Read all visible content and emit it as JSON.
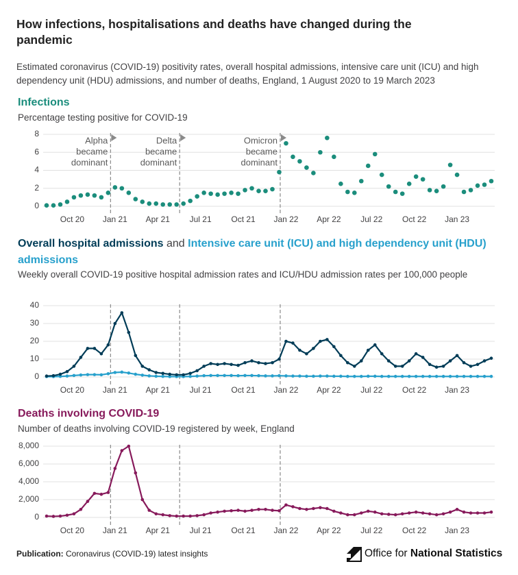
{
  "header": {
    "title": "How infections, hospitalisations and deaths have changed during the pandemic",
    "subtitle": "Estimated coronavirus (COVID-19) positivity rates, overall hospital admissions, intensive care unit (ICU) and high dependency unit (HDU) admissions, and number of deaths, England, 1 August 2020 to 19 March 2023"
  },
  "footer": {
    "label": "Publication:",
    "text": "Coronavirus (COVID-19) latest insights"
  },
  "logo": {
    "text_regular": "Office for",
    "text_bold": "National Statistics"
  },
  "chart_data": [
    {
      "type": "scatter",
      "title": "Infections",
      "subtitle": "Percentage testing positive for COVID-19",
      "color": "#1b8d7c",
      "x": [
        2020.6,
        2020.64,
        2020.68,
        2020.72,
        2020.76,
        2020.8,
        2020.84,
        2020.88,
        2020.92,
        2020.96,
        2021,
        2021.04,
        2021.08,
        2021.12,
        2021.16,
        2021.2,
        2021.24,
        2021.28,
        2021.32,
        2021.36,
        2021.4,
        2021.44,
        2021.48,
        2021.52,
        2021.56,
        2021.6,
        2021.64,
        2021.68,
        2021.72,
        2021.76,
        2021.8,
        2021.84,
        2021.88,
        2021.92,
        2021.96,
        2022,
        2022.04,
        2022.08,
        2022.12,
        2022.16,
        2022.2,
        2022.24,
        2022.28,
        2022.32,
        2022.36,
        2022.4,
        2022.44,
        2022.48,
        2022.52,
        2022.56,
        2022.6,
        2022.64,
        2022.68,
        2022.72,
        2022.76,
        2022.8,
        2022.84,
        2022.88,
        2022.92,
        2022.96,
        2023,
        2023.04,
        2023.08,
        2023.12,
        2023.16,
        2023.2
      ],
      "values": [
        0.1,
        0.1,
        0.2,
        0.5,
        1.0,
        1.2,
        1.3,
        1.2,
        1.0,
        1.5,
        2.1,
        2.0,
        1.5,
        0.8,
        0.5,
        0.3,
        0.3,
        0.2,
        0.2,
        0.2,
        0.3,
        0.6,
        1.1,
        1.5,
        1.4,
        1.3,
        1.4,
        1.5,
        1.4,
        1.8,
        2.0,
        1.7,
        1.7,
        1.9,
        3.8,
        7.0,
        5.5,
        5.0,
        4.3,
        3.7,
        6.0,
        7.6,
        5.5,
        2.5,
        1.6,
        1.5,
        2.8,
        4.5,
        5.8,
        3.5,
        2.2,
        1.6,
        1.4,
        2.5,
        3.3,
        3.0,
        1.8,
        1.7,
        2.2,
        4.6,
        3.5,
        1.6,
        1.8,
        2.3,
        2.4,
        2.8
      ],
      "xlim": [
        2020.58,
        2023.22
      ],
      "xticks": [
        {
          "value": 2020.75,
          "label": "Oct 20"
        },
        {
          "value": 2021,
          "label": "Jan 21"
        },
        {
          "value": 2021.25,
          "label": "Apr 21"
        },
        {
          "value": 2021.5,
          "label": "Jul 21"
        },
        {
          "value": 2021.75,
          "label": "Oct 21"
        },
        {
          "value": 2022,
          "label": "Jan 22"
        },
        {
          "value": 2022.25,
          "label": "Apr 22"
        },
        {
          "value": 2022.5,
          "label": "Jul 22"
        },
        {
          "value": 2022.75,
          "label": "Oct 22"
        },
        {
          "value": 2023,
          "label": "Jan 23"
        }
      ],
      "ylim": [
        0,
        8
      ],
      "yticks": [
        0,
        2,
        4,
        6,
        8
      ],
      "grid": true,
      "annotations": [
        {
          "x": 2020.974,
          "label": [
            "Alpha",
            "became",
            "dominant"
          ]
        },
        {
          "x": 2021.378,
          "label": [
            "Delta",
            "became",
            "dominant"
          ]
        },
        {
          "x": 2021.966,
          "label": [
            "Omicron",
            "became",
            "dominant"
          ]
        }
      ]
    },
    {
      "type": "line",
      "title_joiner": "and",
      "subtitle": "Weekly overall COVID-19 positive hospital admission rates and ICU/HDU admission rates per 100,000 people",
      "x": [
        2020.6,
        2020.64,
        2020.68,
        2020.72,
        2020.76,
        2020.8,
        2020.84,
        2020.88,
        2020.92,
        2020.96,
        2021,
        2021.04,
        2021.08,
        2021.12,
        2021.16,
        2021.2,
        2021.24,
        2021.28,
        2021.32,
        2021.36,
        2021.4,
        2021.44,
        2021.48,
        2021.52,
        2021.56,
        2021.6,
        2021.64,
        2021.68,
        2021.72,
        2021.76,
        2021.8,
        2021.84,
        2021.88,
        2021.92,
        2021.96,
        2022,
        2022.04,
        2022.08,
        2022.12,
        2022.16,
        2022.2,
        2022.24,
        2022.28,
        2022.32,
        2022.36,
        2022.4,
        2022.44,
        2022.48,
        2022.52,
        2022.56,
        2022.6,
        2022.64,
        2022.68,
        2022.72,
        2022.76,
        2022.8,
        2022.84,
        2022.88,
        2022.92,
        2022.96,
        2023,
        2023.04,
        2023.08,
        2023.12,
        2023.16,
        2023.2
      ],
      "series": [
        {
          "name": "Overall hospital admissions",
          "color": "#003c57",
          "values": [
            0.5,
            0.7,
            1.5,
            3,
            6,
            11,
            16,
            16,
            13,
            18,
            30,
            36,
            25,
            12,
            6,
            4,
            2.5,
            2,
            1.5,
            1.2,
            1.2,
            2,
            3.5,
            6,
            7.5,
            7,
            7.5,
            7,
            6.5,
            8,
            9,
            8,
            7.5,
            8,
            10,
            20,
            19,
            15,
            13,
            16,
            20,
            21,
            17,
            12,
            8,
            6,
            9,
            15,
            18,
            13,
            9,
            6,
            6,
            9,
            13,
            11,
            7,
            5.5,
            6,
            9,
            12,
            8,
            6,
            7,
            9,
            10.5
          ]
        },
        {
          "name": "Intensive care unit (ICU) and high dependency unit (HDU) admissions",
          "color": "#27a0cc",
          "values": [
            0.2,
            0.2,
            0.3,
            0.5,
            0.8,
            1.1,
            1.3,
            1.3,
            1.2,
            1.8,
            2.5,
            2.7,
            2.2,
            1.5,
            1.0,
            0.6,
            0.4,
            0.3,
            0.2,
            0.2,
            0.2,
            0.3,
            0.5,
            0.7,
            0.8,
            0.8,
            0.8,
            0.8,
            0.7,
            0.8,
            0.8,
            0.7,
            0.6,
            0.6,
            0.7,
            0.6,
            0.5,
            0.5,
            0.4,
            0.4,
            0.5,
            0.5,
            0.4,
            0.4,
            0.3,
            0.3,
            0.3,
            0.4,
            0.4,
            0.3,
            0.3,
            0.3,
            0.3,
            0.3,
            0.3,
            0.3,
            0.3,
            0.3,
            0.3,
            0.3,
            0.3,
            0.3,
            0.3,
            0.3,
            0.3,
            0.3
          ]
        }
      ],
      "xlim": [
        2020.58,
        2023.22
      ],
      "xticks": [
        {
          "value": 2020.75,
          "label": "Oct 20"
        },
        {
          "value": 2021,
          "label": "Jan 21"
        },
        {
          "value": 2021.25,
          "label": "Apr 21"
        },
        {
          "value": 2021.5,
          "label": "Jul 21"
        },
        {
          "value": 2021.75,
          "label": "Oct 21"
        },
        {
          "value": 2022,
          "label": "Jan 22"
        },
        {
          "value": 2022.25,
          "label": "Apr 22"
        },
        {
          "value": 2022.5,
          "label": "Jul 22"
        },
        {
          "value": 2022.75,
          "label": "Oct 22"
        },
        {
          "value": 2023,
          "label": "Jan 23"
        }
      ],
      "ylim": [
        0,
        40
      ],
      "yticks": [
        0,
        10,
        20,
        30,
        40
      ],
      "grid": true,
      "vlines": [
        2020.974,
        2021.378,
        2021.966
      ]
    },
    {
      "type": "line",
      "title": "Deaths involving COVID-19",
      "subtitle": "Number of deaths involving COVID-19 registered by week, England",
      "color": "#871a5b",
      "x": [
        2020.6,
        2020.64,
        2020.68,
        2020.72,
        2020.76,
        2020.8,
        2020.84,
        2020.88,
        2020.92,
        2020.96,
        2021,
        2021.04,
        2021.08,
        2021.12,
        2021.16,
        2021.2,
        2021.24,
        2021.28,
        2021.32,
        2021.36,
        2021.4,
        2021.44,
        2021.48,
        2021.52,
        2021.56,
        2021.6,
        2021.64,
        2021.68,
        2021.72,
        2021.76,
        2021.8,
        2021.84,
        2021.88,
        2021.92,
        2021.96,
        2022,
        2022.04,
        2022.08,
        2022.12,
        2022.16,
        2022.2,
        2022.24,
        2022.28,
        2022.32,
        2022.36,
        2022.4,
        2022.44,
        2022.48,
        2022.52,
        2022.56,
        2022.6,
        2022.64,
        2022.68,
        2022.72,
        2022.76,
        2022.8,
        2022.84,
        2022.88,
        2022.92,
        2022.96,
        2023,
        2023.04,
        2023.08,
        2023.12,
        2023.16,
        2023.2
      ],
      "values": [
        150,
        120,
        150,
        250,
        400,
        900,
        1800,
        2700,
        2600,
        2800,
        5500,
        7500,
        8000,
        5000,
        2000,
        800,
        400,
        300,
        200,
        150,
        150,
        150,
        200,
        300,
        500,
        600,
        700,
        750,
        800,
        700,
        800,
        900,
        900,
        800,
        750,
        1400,
        1200,
        1000,
        900,
        1000,
        1100,
        1000,
        700,
        500,
        300,
        300,
        500,
        700,
        600,
        400,
        350,
        300,
        400,
        500,
        600,
        500,
        400,
        300,
        400,
        600,
        900,
        600,
        500,
        500,
        500,
        600
      ],
      "xlim": [
        2020.58,
        2023.22
      ],
      "xticks": [
        {
          "value": 2020.75,
          "label": "Oct 20"
        },
        {
          "value": 2021,
          "label": "Jan 21"
        },
        {
          "value": 2021.25,
          "label": "Apr 21"
        },
        {
          "value": 2021.5,
          "label": "Jul 21"
        },
        {
          "value": 2021.75,
          "label": "Oct 21"
        },
        {
          "value": 2022,
          "label": "Jan 22"
        },
        {
          "value": 2022.25,
          "label": "Apr 22"
        },
        {
          "value": 2022.5,
          "label": "Jul 22"
        },
        {
          "value": 2022.75,
          "label": "Oct 22"
        },
        {
          "value": 2023,
          "label": "Jan 23"
        }
      ],
      "ylim": [
        0,
        8000
      ],
      "yticks": [
        0,
        {
          "value": 2000,
          "label": "2,000"
        },
        {
          "value": 4000,
          "label": "4,000"
        },
        {
          "value": 6000,
          "label": "6,000"
        },
        {
          "value": 8000,
          "label": "8,000"
        }
      ],
      "grid": true,
      "vlines": [
        2020.974,
        2021.378,
        2021.966
      ]
    }
  ]
}
